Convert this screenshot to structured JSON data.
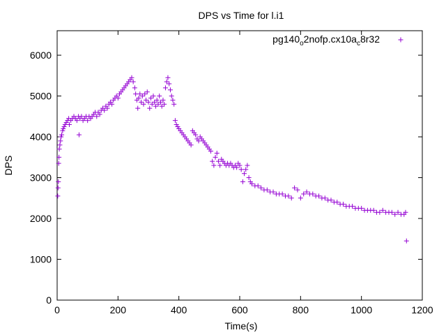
{
  "chart_data": {
    "type": "scatter",
    "title": "DPS vs Time for l.i1",
    "xlabel": "Time(s)",
    "ylabel": "DPS",
    "xlim": [
      0,
      1200
    ],
    "ylim": [
      0,
      6600
    ],
    "x_ticks": [
      0,
      200,
      400,
      600,
      800,
      1000,
      1200
    ],
    "y_ticks": [
      0,
      1000,
      2000,
      3000,
      4000,
      5000,
      6000
    ],
    "grid": false,
    "legend_position": "top-right",
    "marker": "+",
    "color": "#9400d3",
    "series": [
      {
        "name": "pg140o2nofp.cx10ac8r32",
        "name_parts": [
          "pg140",
          "o",
          "2nofp.cx10a",
          "c",
          "8r32"
        ],
        "points": [
          [
            2,
            2550
          ],
          [
            3,
            2750
          ],
          [
            4,
            2900
          ],
          [
            5,
            3350
          ],
          [
            6,
            3500
          ],
          [
            7,
            3700
          ],
          [
            9,
            3800
          ],
          [
            11,
            3900
          ],
          [
            13,
            4000
          ],
          [
            15,
            4050
          ],
          [
            18,
            4150
          ],
          [
            20,
            4200
          ],
          [
            23,
            4250
          ],
          [
            26,
            4300
          ],
          [
            30,
            4350
          ],
          [
            34,
            4400
          ],
          [
            38,
            4450
          ],
          [
            40,
            4300
          ],
          [
            45,
            4400
          ],
          [
            50,
            4450
          ],
          [
            55,
            4500
          ],
          [
            60,
            4450
          ],
          [
            65,
            4400
          ],
          [
            70,
            4500
          ],
          [
            72,
            4050
          ],
          [
            75,
            4450
          ],
          [
            80,
            4500
          ],
          [
            85,
            4400
          ],
          [
            90,
            4450
          ],
          [
            95,
            4500
          ],
          [
            100,
            4400
          ],
          [
            105,
            4500
          ],
          [
            110,
            4450
          ],
          [
            115,
            4500
          ],
          [
            120,
            4550
          ],
          [
            125,
            4600
          ],
          [
            130,
            4500
          ],
          [
            135,
            4600
          ],
          [
            140,
            4550
          ],
          [
            145,
            4650
          ],
          [
            150,
            4700
          ],
          [
            155,
            4650
          ],
          [
            160,
            4750
          ],
          [
            165,
            4700
          ],
          [
            170,
            4800
          ],
          [
            175,
            4850
          ],
          [
            180,
            4800
          ],
          [
            185,
            4900
          ],
          [
            190,
            4950
          ],
          [
            195,
            5000
          ],
          [
            200,
            4950
          ],
          [
            205,
            5050
          ],
          [
            210,
            5100
          ],
          [
            215,
            5150
          ],
          [
            220,
            5200
          ],
          [
            225,
            5250
          ],
          [
            230,
            5300
          ],
          [
            235,
            5350
          ],
          [
            240,
            5400
          ],
          [
            245,
            5450
          ],
          [
            250,
            5350
          ],
          [
            255,
            5200
          ],
          [
            258,
            5050
          ],
          [
            262,
            4900
          ],
          [
            265,
            4700
          ],
          [
            268,
            4950
          ],
          [
            272,
            5050
          ],
          [
            276,
            4850
          ],
          [
            280,
            5000
          ],
          [
            284,
            4800
          ],
          [
            288,
            5050
          ],
          [
            292,
            4900
          ],
          [
            296,
            5100
          ],
          [
            300,
            4850
          ],
          [
            304,
            4700
          ],
          [
            308,
            4950
          ],
          [
            312,
            4800
          ],
          [
            316,
            5000
          ],
          [
            320,
            4850
          ],
          [
            324,
            4750
          ],
          [
            328,
            4900
          ],
          [
            332,
            4800
          ],
          [
            336,
            5000
          ],
          [
            340,
            4850
          ],
          [
            344,
            4750
          ],
          [
            348,
            4900
          ],
          [
            352,
            4800
          ],
          [
            356,
            5200
          ],
          [
            360,
            5350
          ],
          [
            364,
            5450
          ],
          [
            368,
            5300
          ],
          [
            372,
            5150
          ],
          [
            376,
            5000
          ],
          [
            380,
            4900
          ],
          [
            384,
            4800
          ],
          [
            388,
            4400
          ],
          [
            392,
            4300
          ],
          [
            396,
            4250
          ],
          [
            400,
            4200
          ],
          [
            405,
            4150
          ],
          [
            410,
            4100
          ],
          [
            415,
            4050
          ],
          [
            420,
            4000
          ],
          [
            425,
            3950
          ],
          [
            430,
            3900
          ],
          [
            435,
            3850
          ],
          [
            440,
            3800
          ],
          [
            445,
            4150
          ],
          [
            450,
            4100
          ],
          [
            455,
            4050
          ],
          [
            460,
            3950
          ],
          [
            465,
            3900
          ],
          [
            470,
            4000
          ],
          [
            475,
            3950
          ],
          [
            480,
            3900
          ],
          [
            485,
            3850
          ],
          [
            490,
            3800
          ],
          [
            495,
            3750
          ],
          [
            500,
            3700
          ],
          [
            505,
            3650
          ],
          [
            510,
            3400
          ],
          [
            515,
            3300
          ],
          [
            520,
            3500
          ],
          [
            525,
            3600
          ],
          [
            530,
            3400
          ],
          [
            535,
            3300
          ],
          [
            540,
            3450
          ],
          [
            545,
            3400
          ],
          [
            550,
            3350
          ],
          [
            555,
            3300
          ],
          [
            560,
            3350
          ],
          [
            565,
            3300
          ],
          [
            570,
            3350
          ],
          [
            575,
            3300
          ],
          [
            580,
            3250
          ],
          [
            585,
            3300
          ],
          [
            590,
            3250
          ],
          [
            595,
            3350
          ],
          [
            600,
            3300
          ],
          [
            605,
            3200
          ],
          [
            610,
            2900
          ],
          [
            615,
            3100
          ],
          [
            620,
            3200
          ],
          [
            625,
            3300
          ],
          [
            630,
            3000
          ],
          [
            635,
            2900
          ],
          [
            640,
            2850
          ],
          [
            650,
            2800
          ],
          [
            660,
            2800
          ],
          [
            670,
            2750
          ],
          [
            680,
            2700
          ],
          [
            690,
            2700
          ],
          [
            700,
            2650
          ],
          [
            710,
            2650
          ],
          [
            720,
            2600
          ],
          [
            730,
            2600
          ],
          [
            740,
            2600
          ],
          [
            750,
            2550
          ],
          [
            760,
            2550
          ],
          [
            770,
            2500
          ],
          [
            780,
            2750
          ],
          [
            790,
            2700
          ],
          [
            800,
            2500
          ],
          [
            810,
            2600
          ],
          [
            820,
            2650
          ],
          [
            830,
            2600
          ],
          [
            840,
            2600
          ],
          [
            850,
            2550
          ],
          [
            860,
            2550
          ],
          [
            870,
            2500
          ],
          [
            880,
            2500
          ],
          [
            890,
            2450
          ],
          [
            900,
            2450
          ],
          [
            910,
            2400
          ],
          [
            920,
            2400
          ],
          [
            930,
            2350
          ],
          [
            940,
            2350
          ],
          [
            950,
            2300
          ],
          [
            960,
            2300
          ],
          [
            970,
            2300
          ],
          [
            980,
            2250
          ],
          [
            990,
            2250
          ],
          [
            1000,
            2250
          ],
          [
            1010,
            2200
          ],
          [
            1020,
            2200
          ],
          [
            1030,
            2200
          ],
          [
            1040,
            2200
          ],
          [
            1050,
            2150
          ],
          [
            1060,
            2150
          ],
          [
            1070,
            2200
          ],
          [
            1080,
            2150
          ],
          [
            1090,
            2150
          ],
          [
            1100,
            2150
          ],
          [
            1110,
            2100
          ],
          [
            1120,
            2150
          ],
          [
            1130,
            2100
          ],
          [
            1140,
            2100
          ],
          [
            1145,
            2150
          ],
          [
            1148,
            1450
          ]
        ]
      }
    ]
  }
}
